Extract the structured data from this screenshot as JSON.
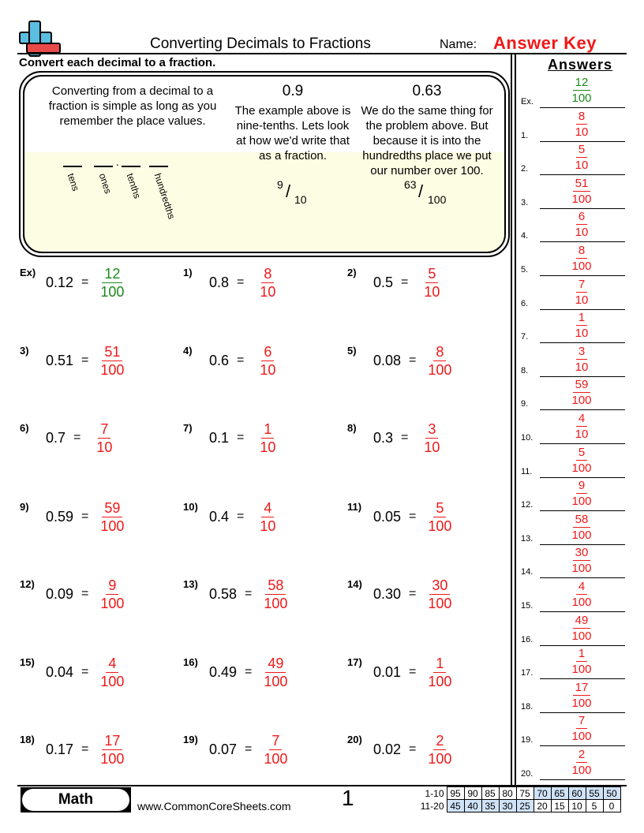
{
  "header": {
    "title": "Converting Decimals to Fractions",
    "name_label": "Name:",
    "name_value": "Answer Key",
    "instructions": "Convert each decimal to a fraction.",
    "answers_heading": "Answers"
  },
  "example_box": {
    "intro": "Converting from a decimal to a fraction is simple as long as you remember the place values.",
    "place_values": [
      "tens",
      "ones",
      "tenths",
      "hundredths"
    ],
    "decimal_point": ".",
    "ex1": {
      "value": "0.9",
      "text": "The example above is nine-tenths. Lets look at how we'd write that as a fraction.",
      "num": "9",
      "den": "10"
    },
    "ex2": {
      "value": "0.63",
      "text": "We do the same thing for the problem above. But because it is into the hundredths place we put our number over 100.",
      "num": "63",
      "den": "100"
    },
    "slash": "/"
  },
  "problems": [
    {
      "label": "Ex)",
      "decimal": "0.12",
      "num": "12",
      "den": "100",
      "example": true
    },
    {
      "label": "1)",
      "decimal": "0.8",
      "num": "8",
      "den": "10"
    },
    {
      "label": "2)",
      "decimal": "0.5",
      "num": "5",
      "den": "10"
    },
    {
      "label": "3)",
      "decimal": "0.51",
      "num": "51",
      "den": "100"
    },
    {
      "label": "4)",
      "decimal": "0.6",
      "num": "6",
      "den": "10"
    },
    {
      "label": "5)",
      "decimal": "0.08",
      "num": "8",
      "den": "100"
    },
    {
      "label": "6)",
      "decimal": "0.7",
      "num": "7",
      "den": "10"
    },
    {
      "label": "7)",
      "decimal": "0.1",
      "num": "1",
      "den": "10"
    },
    {
      "label": "8)",
      "decimal": "0.3",
      "num": "3",
      "den": "10"
    },
    {
      "label": "9)",
      "decimal": "0.59",
      "num": "59",
      "den": "100"
    },
    {
      "label": "10)",
      "decimal": "0.4",
      "num": "4",
      "den": "10"
    },
    {
      "label": "11)",
      "decimal": "0.05",
      "num": "5",
      "den": "100"
    },
    {
      "label": "12)",
      "decimal": "0.09",
      "num": "9",
      "den": "100"
    },
    {
      "label": "13)",
      "decimal": "0.58",
      "num": "58",
      "den": "100"
    },
    {
      "label": "14)",
      "decimal": "0.30",
      "num": "30",
      "den": "100"
    },
    {
      "label": "15)",
      "decimal": "0.04",
      "num": "4",
      "den": "100"
    },
    {
      "label": "16)",
      "decimal": "0.49",
      "num": "49",
      "den": "100"
    },
    {
      "label": "17)",
      "decimal": "0.01",
      "num": "1",
      "den": "100"
    },
    {
      "label": "18)",
      "decimal": "0.17",
      "num": "17",
      "den": "100"
    },
    {
      "label": "19)",
      "decimal": "0.07",
      "num": "7",
      "den": "100"
    },
    {
      "label": "20)",
      "decimal": "0.02",
      "num": "2",
      "den": "100"
    }
  ],
  "equals": "=",
  "answers": [
    {
      "label": "Ex.",
      "num": "12",
      "den": "100"
    },
    {
      "label": "1.",
      "num": "8",
      "den": "10"
    },
    {
      "label": "2.",
      "num": "5",
      "den": "10"
    },
    {
      "label": "3.",
      "num": "51",
      "den": "100"
    },
    {
      "label": "4.",
      "num": "6",
      "den": "10"
    },
    {
      "label": "5.",
      "num": "8",
      "den": "100"
    },
    {
      "label": "6.",
      "num": "7",
      "den": "10"
    },
    {
      "label": "7.",
      "num": "1",
      "den": "10"
    },
    {
      "label": "8.",
      "num": "3",
      "den": "10"
    },
    {
      "label": "9.",
      "num": "59",
      "den": "100"
    },
    {
      "label": "10.",
      "num": "4",
      "den": "10"
    },
    {
      "label": "11.",
      "num": "5",
      "den": "100"
    },
    {
      "label": "12.",
      "num": "9",
      "den": "100"
    },
    {
      "label": "13.",
      "num": "58",
      "den": "100"
    },
    {
      "label": "14.",
      "num": "30",
      "den": "100"
    },
    {
      "label": "15.",
      "num": "4",
      "den": "100"
    },
    {
      "label": "16.",
      "num": "49",
      "den": "100"
    },
    {
      "label": "17.",
      "num": "1",
      "den": "100"
    },
    {
      "label": "18.",
      "num": "17",
      "den": "100"
    },
    {
      "label": "19.",
      "num": "7",
      "den": "100"
    },
    {
      "label": "20.",
      "num": "2",
      "den": "100"
    }
  ],
  "footer": {
    "subject": "Math",
    "url": "www.CommonCoreSheets.com",
    "page": "1",
    "score_rows": [
      {
        "label": "1-10",
        "values": [
          "95",
          "90",
          "85",
          "80",
          "75",
          "70",
          "65",
          "60",
          "55",
          "50"
        ]
      },
      {
        "label": "11-20",
        "values": [
          "45",
          "40",
          "35",
          "30",
          "25",
          "20",
          "15",
          "10",
          "5",
          "0"
        ]
      }
    ]
  },
  "colors": {
    "answer": "#f01818",
    "example": "#1a8a1a",
    "logo_blue": "#5bbde0",
    "logo_red": "#e84a4a",
    "highlight": "#cfe2f8"
  }
}
